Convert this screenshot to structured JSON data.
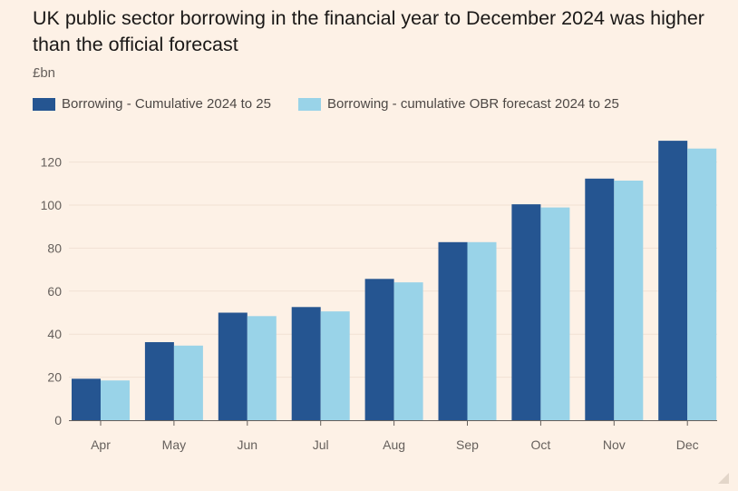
{
  "chart_data": {
    "type": "bar",
    "title": "UK public sector borrowing in the financial year to December 2024 was higher than the official forecast",
    "unit_label": "£bn",
    "categories": [
      "Apr",
      "May",
      "Jun",
      "Jul",
      "Aug",
      "Sep",
      "Oct",
      "Nov",
      "Dec"
    ],
    "series": [
      {
        "name": "Borrowing - Cumulative 2024 to 25",
        "color": "#255591",
        "values": [
          19.3,
          36.3,
          50.0,
          52.6,
          65.7,
          82.8,
          100.4,
          112.3,
          129.9
        ]
      },
      {
        "name": "Borrowing - cumulative OBR forecast 2024 to 25",
        "color": "#99d3e8",
        "values": [
          18.5,
          34.7,
          48.4,
          50.6,
          64.1,
          82.8,
          98.9,
          111.4,
          126.3
        ]
      }
    ],
    "yticks": [
      0,
      20,
      40,
      60,
      80,
      100,
      120
    ],
    "ylim": [
      0,
      135
    ],
    "grid": true,
    "legend_position": "top-left"
  }
}
